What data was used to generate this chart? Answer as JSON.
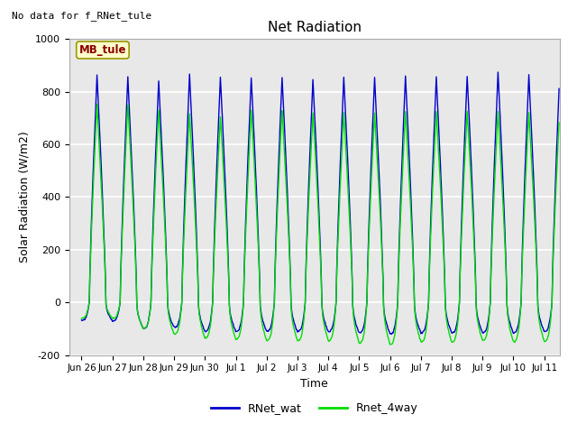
{
  "title": "Net Radiation",
  "xlabel": "Time",
  "ylabel": "Solar Radiation (W/m2)",
  "ylim": [
    -200,
    1000
  ],
  "background_color": "#e8e8e8",
  "grid_color": "white",
  "line1_color": "#0000cc",
  "line2_color": "#00dd00",
  "line1_label": "RNet_wat",
  "line2_label": "Rnet_4way",
  "annotation_text": "No data for f_RNet_tule",
  "tick_labels": [
    "Jun 26",
    "Jun 27",
    "Jun 28",
    "Jun 29",
    "Jun 30",
    "Jul 1",
    "Jul 2",
    "Jul 3",
    "Jul 4",
    "Jul 5",
    "Jul 6",
    "Jul 7",
    "Jul 8",
    "Jul 9",
    "Jul 10",
    "Jul 11"
  ],
  "tick_positions": [
    0,
    1,
    2,
    3,
    4,
    5,
    6,
    7,
    8,
    9,
    10,
    11,
    12,
    13,
    14,
    15
  ],
  "day_peak_blue": [
    860,
    855,
    840,
    865,
    855,
    855,
    855,
    845,
    855,
    855,
    860,
    855,
    860,
    875,
    865,
    870
  ],
  "day_peak_green": [
    750,
    750,
    730,
    715,
    705,
    730,
    730,
    720,
    720,
    720,
    725,
    725,
    725,
    725,
    720,
    730
  ],
  "night_min_blue": [
    -70,
    -100,
    -95,
    -110,
    -110,
    -110,
    -110,
    -110,
    -115,
    -120,
    -115,
    -115,
    -115,
    -115,
    -110,
    -80
  ],
  "night_min_green": [
    -60,
    -100,
    -120,
    -135,
    -140,
    -145,
    -145,
    -145,
    -155,
    -160,
    -150,
    -150,
    -145,
    -148,
    -148,
    -130
  ]
}
